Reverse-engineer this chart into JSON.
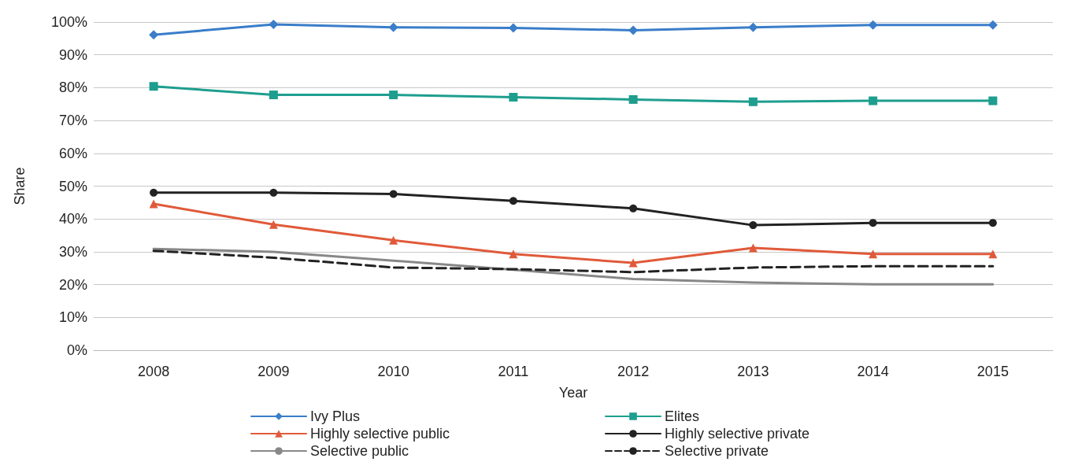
{
  "chart_data": {
    "type": "line",
    "xlabel": "Year",
    "ylabel": "Share",
    "categories": [
      "2008",
      "2009",
      "2010",
      "2011",
      "2012",
      "2013",
      "2014",
      "2015"
    ],
    "series": [
      {
        "name": "Ivy Plus",
        "color": "#3a7dc9",
        "marker": "diamond",
        "line_style": "solid",
        "values": [
          96.1,
          99.3,
          98.4,
          98.2,
          97.5,
          98.4,
          99.1,
          99.1
        ]
      },
      {
        "name": "Elites",
        "color": "#1e9e8e",
        "marker": "square",
        "line_style": "solid",
        "values": [
          80.4,
          77.8,
          77.8,
          77.1,
          76.4,
          75.7,
          76.0,
          76.0
        ]
      },
      {
        "name": "Highly selective public",
        "color": "#e05a3a",
        "marker": "triangle",
        "line_style": "solid",
        "values": [
          44.6,
          38.3,
          33.5,
          29.3,
          26.6,
          31.2,
          29.3,
          29.3
        ]
      },
      {
        "name": "Highly selective private",
        "color": "#222222",
        "marker": "circle",
        "line_style": "solid",
        "values": [
          48.0,
          48.0,
          47.6,
          45.5,
          43.2,
          38.1,
          38.8,
          38.8
        ]
      },
      {
        "name": "Selective public",
        "color": "#888888",
        "marker": "none",
        "line_style": "solid",
        "values": [
          30.9,
          30.0,
          27.3,
          24.5,
          21.7,
          20.6,
          20.1,
          20.1
        ]
      },
      {
        "name": "Selective private",
        "color": "#222222",
        "marker": "none",
        "line_style": "dashed",
        "values": [
          30.3,
          28.2,
          25.2,
          24.7,
          23.8,
          25.2,
          25.6,
          25.6
        ]
      }
    ],
    "ylim": [
      0,
      100
    ],
    "yticks": [
      {
        "value": 0,
        "label": "0%"
      },
      {
        "value": 10,
        "label": "10%"
      },
      {
        "value": 20,
        "label": "20%"
      },
      {
        "value": 30,
        "label": "30%"
      },
      {
        "value": 40,
        "label": "40%"
      },
      {
        "value": 50,
        "label": "50%"
      },
      {
        "value": 60,
        "label": "60%"
      },
      {
        "value": 70,
        "label": "70%"
      },
      {
        "value": 80,
        "label": "80%"
      },
      {
        "value": 90,
        "label": "90%"
      },
      {
        "value": 100,
        "label": "100%"
      }
    ],
    "grid": "y",
    "legend": "bottom"
  }
}
